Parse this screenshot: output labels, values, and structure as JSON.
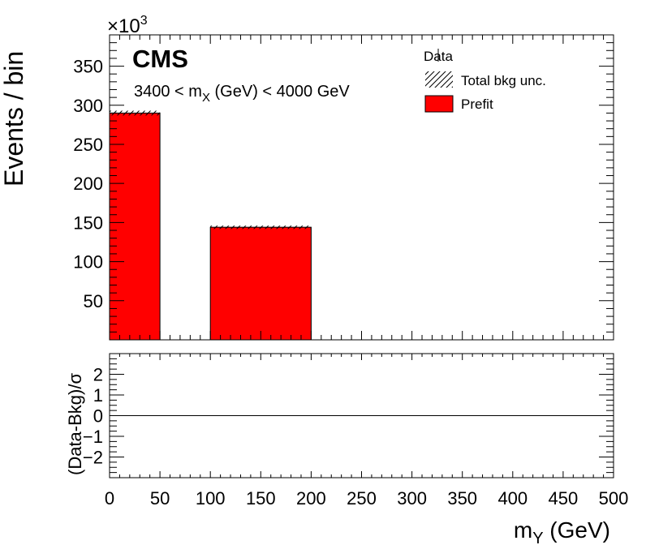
{
  "figure": {
    "experiment_label": "CMS",
    "exponent_label": "×10",
    "exponent_power": "3",
    "mass_range": {
      "prefix": "3400 < m",
      "subscript": "X",
      "suffix": " (GeV) < 4000 GeV"
    }
  },
  "legend": {
    "data_label": "Data",
    "uncertainty_label": "Total bkg unc.",
    "prefit_label": "Prefit"
  },
  "colors": {
    "prefit": "#ff0000",
    "line": "#000000",
    "background": "#ffffff"
  },
  "chart_data": [
    {
      "type": "bar",
      "panel": "main",
      "ylabel": "Events / bin",
      "xlim": [
        0,
        500
      ],
      "ylim": [
        0,
        390
      ],
      "y_unit_multiplier": 1000,
      "yticks": [
        50,
        100,
        150,
        200,
        250,
        300,
        350
      ],
      "bins": [
        {
          "x_low": 0,
          "x_high": 50,
          "value": 290,
          "unc": 3
        },
        {
          "x_low": 50,
          "x_high": 100,
          "value": 0,
          "unc": 0
        },
        {
          "x_low": 100,
          "x_high": 200,
          "value": 144,
          "unc": 2
        }
      ],
      "series": [
        {
          "name": "Prefit"
        },
        {
          "name": "Total bkg unc."
        },
        {
          "name": "Data"
        }
      ]
    },
    {
      "type": "line",
      "panel": "ratio",
      "ylabel": "(Data-Bkg)/σ",
      "xlabel_main": "m",
      "xlabel_sub": "Y",
      "xlabel_suffix": " (GeV)",
      "xlim": [
        0,
        500
      ],
      "ylim": [
        -3,
        3
      ],
      "yticks": [
        -2,
        -1,
        0,
        1,
        2
      ],
      "xticks": [
        0,
        50,
        100,
        150,
        200,
        250,
        300,
        350,
        400,
        450,
        500
      ],
      "reference_line": 0
    }
  ]
}
